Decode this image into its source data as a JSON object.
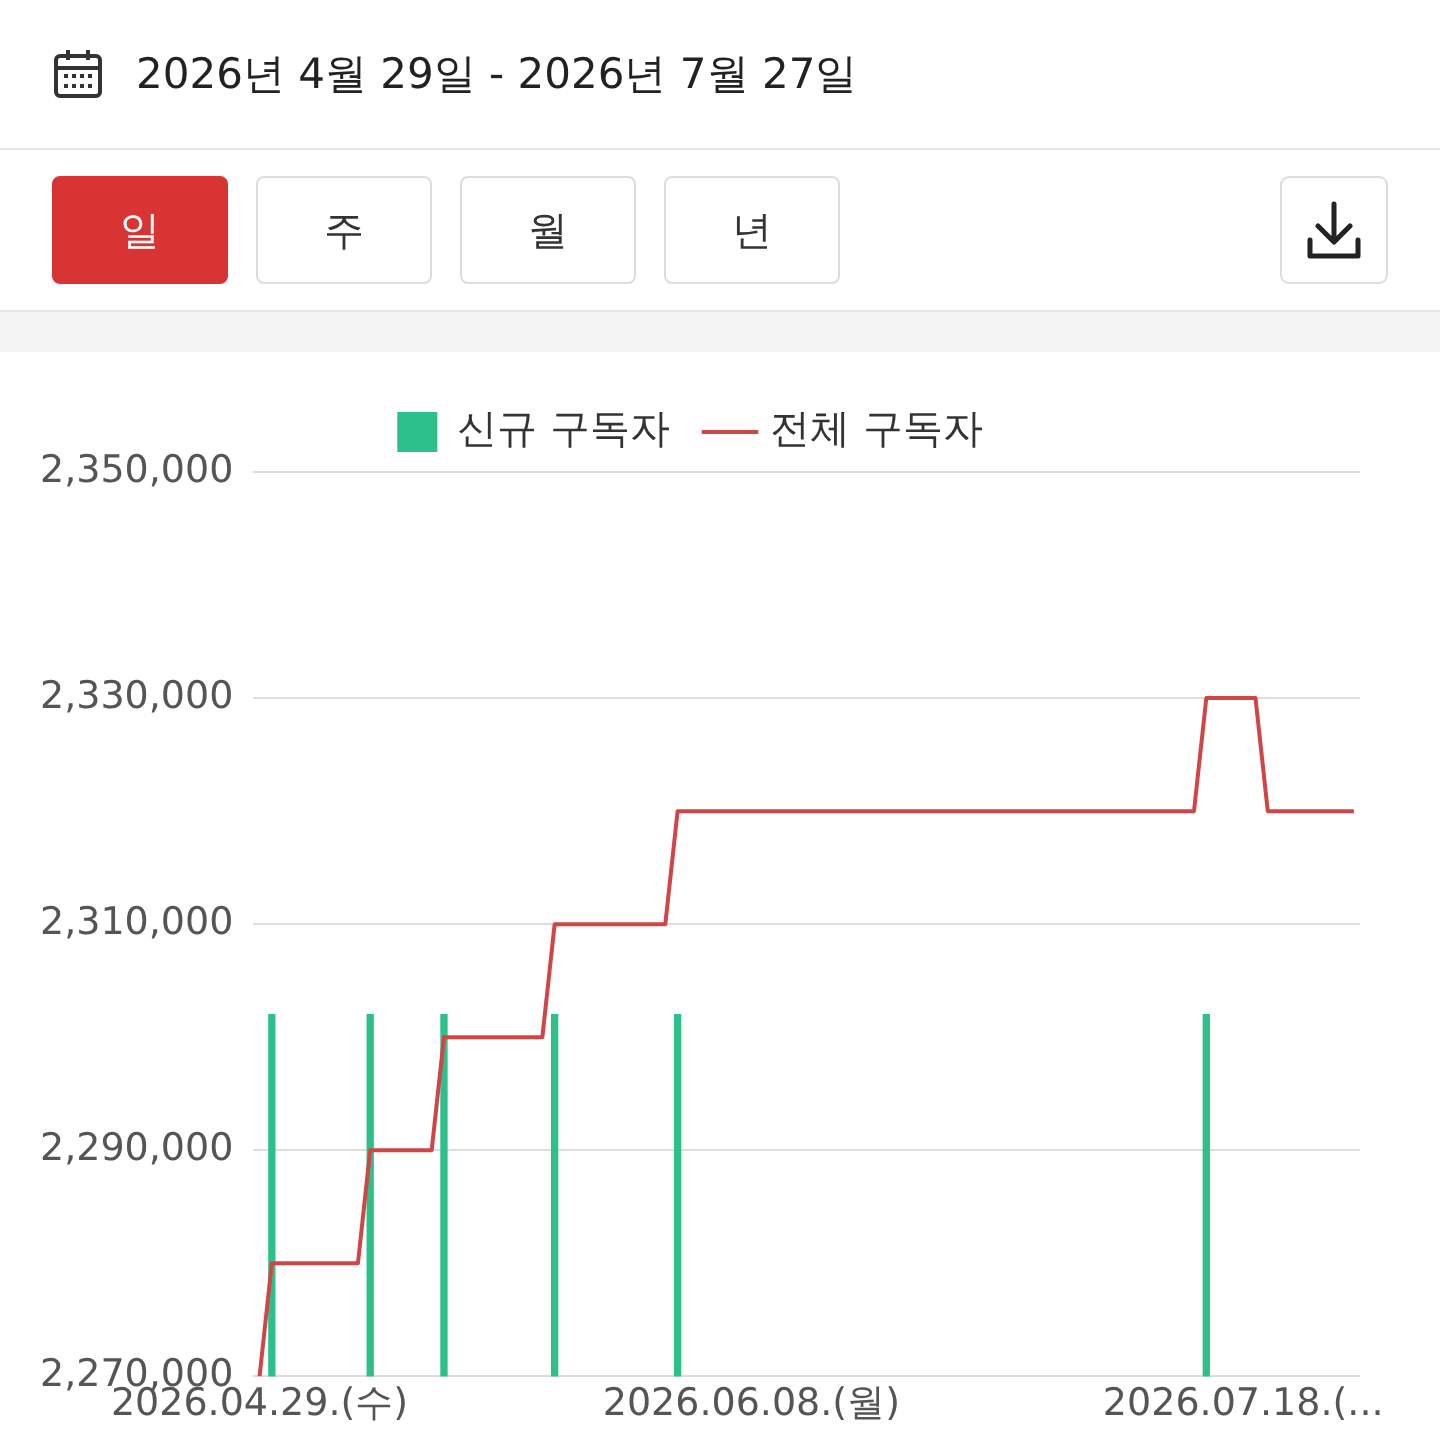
{
  "chart_data": {
    "type": "line",
    "title": "2026년 4월 29일 - 2026년 7월 27일",
    "annotations": [
      "일",
      "주",
      "월",
      "년"
    ],
    "categories": [
      "2026.04.29.(수)",
      null,
      null,
      null,
      null,
      null,
      null,
      null,
      null,
      null,
      null,
      null,
      null,
      null,
      null,
      null,
      null,
      null,
      null,
      null,
      null,
      null,
      null,
      null,
      null,
      null,
      null,
      null,
      null,
      null,
      null,
      null,
      null,
      null,
      null,
      null,
      null,
      null,
      null,
      null,
      "2026.06.08.(월)",
      null,
      null,
      null,
      null,
      null,
      null,
      null,
      null,
      null,
      null,
      null,
      null,
      null,
      null,
      null,
      null,
      null,
      null,
      null,
      null,
      null,
      null,
      null,
      null,
      null,
      null,
      null,
      null,
      null,
      null,
      null,
      null,
      null,
      null,
      null,
      null,
      null,
      null,
      null,
      "2026.07.18.(...",
      null,
      null,
      null,
      null,
      null,
      null,
      null,
      null,
      null
    ],
    "series": [
      {
        "name": "신규 구독자",
        "type": "bar",
        "color": "#2ec08b",
        "values": [
          null,
          2302000,
          null,
          null,
          null,
          null,
          null,
          null,
          null,
          2302000,
          null,
          null,
          null,
          null,
          null,
          2302000,
          null,
          null,
          null,
          null,
          null,
          null,
          null,
          null,
          2302000,
          null,
          null,
          null,
          null,
          null,
          null,
          null,
          null,
          null,
          2302000,
          null,
          null,
          null,
          null,
          null,
          null,
          null,
          null,
          null,
          null,
          null,
          null,
          null,
          null,
          null,
          null,
          null,
          null,
          null,
          null,
          null,
          null,
          null,
          null,
          null,
          null,
          null,
          null,
          null,
          null,
          null,
          null,
          null,
          null,
          null,
          null,
          null,
          null,
          null,
          null,
          null,
          null,
          2302000,
          null,
          null,
          null,
          null,
          null,
          null,
          null,
          null,
          null,
          null,
          null,
          null
        ]
      },
      {
        "name": "전체 구독자",
        "color": "#d04545",
        "values": [
          2270000,
          2280000,
          2280000,
          2280000,
          2280000,
          2280000,
          2280000,
          2280000,
          2280000,
          2290000,
          2290000,
          2290000,
          2290000,
          2290000,
          2290000,
          2300000,
          2300000,
          2300000,
          2300000,
          2300000,
          2300000,
          2300000,
          2300000,
          2300000,
          2310000,
          2310000,
          2310000,
          2310000,
          2310000,
          2310000,
          2310000,
          2310000,
          2310000,
          2310000,
          2320000,
          2320000,
          2320000,
          2320000,
          2320000,
          2320000,
          2320000,
          2320000,
          2320000,
          2320000,
          2320000,
          2320000,
          2320000,
          2320000,
          2320000,
          2320000,
          2320000,
          2320000,
          2320000,
          2320000,
          2320000,
          2320000,
          2320000,
          2320000,
          2320000,
          2320000,
          2320000,
          2320000,
          2320000,
          2320000,
          2320000,
          2320000,
          2320000,
          2320000,
          2320000,
          2320000,
          2320000,
          2320000,
          2320000,
          2320000,
          2320000,
          2320000,
          2320000,
          2330000,
          2330000,
          2330000,
          2330000,
          2330000,
          2320000,
          2320000,
          2320000,
          2320000,
          2320000,
          2320000,
          2320000,
          2320000
        ]
      }
    ],
    "ylim": [
      2270000,
      2350000
    ],
    "yticks": [
      {
        "value": 2270000,
        "label": "2,270,000"
      },
      {
        "value": 2290000,
        "label": "2,290,000"
      },
      {
        "value": 2310000,
        "label": "2,310,000"
      },
      {
        "value": 2330000,
        "label": "2,330,000"
      },
      {
        "value": 2350000,
        "label": "2,350,000"
      }
    ],
    "grid": "y",
    "legend": "top",
    "marker": "none"
  }
}
